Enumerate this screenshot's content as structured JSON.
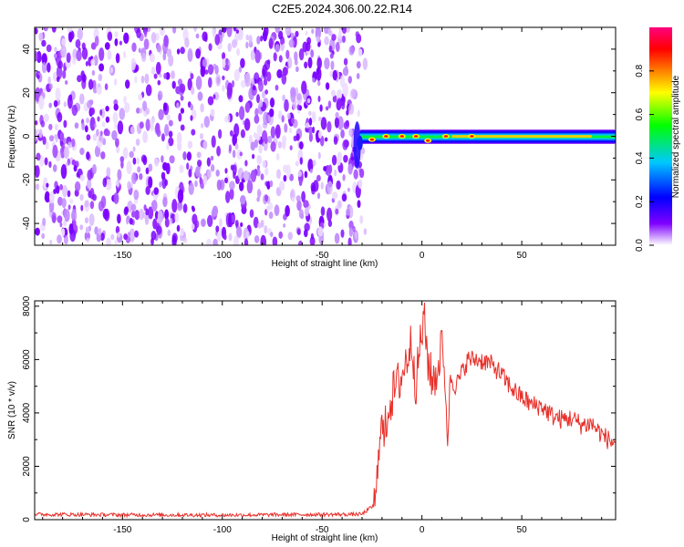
{
  "title": "C2E5.2024.306.00.22.R14",
  "chart_data": [
    {
      "type": "heatmap",
      "xlabel": "Height of straight line (km)",
      "ylabel": "Frequency (Hz)",
      "xlim": [
        -194,
        97
      ],
      "ylim": [
        -50,
        50
      ],
      "xticks": [
        -150,
        -100,
        -50,
        0,
        50
      ],
      "yticks": [
        -40,
        -20,
        0,
        20,
        40
      ],
      "colorbar": {
        "label": "Normalized spectral amplitude",
        "ticks": [
          "0.0",
          "0.2",
          "0.4",
          "0.6",
          "0.8"
        ],
        "range": [
          0,
          1
        ],
        "colormap": [
          "#ffffff",
          "#7f00ff",
          "#0000ff",
          "#00c8ff",
          "#00ff00",
          "#ffff00",
          "#ff8000",
          "#ff0000",
          "#ff0080"
        ]
      },
      "noise_region_x": [
        -194,
        -32
      ],
      "signal_band": {
        "x_range": [
          -32,
          97
        ],
        "center_freq": [
          [
            -32,
            -2
          ],
          [
            -30,
            -3
          ],
          [
            -28,
            -1
          ],
          [
            -20,
            0
          ],
          [
            -10,
            0
          ],
          [
            0,
            0
          ],
          [
            5,
            -2
          ],
          [
            10,
            -1
          ],
          [
            20,
            0
          ],
          [
            50,
            0
          ],
          [
            97,
            0
          ]
        ],
        "peak_x": [
          -25,
          -18,
          -10,
          -3,
          3,
          12,
          25
        ]
      },
      "grid": false
    },
    {
      "type": "line",
      "xlabel": "Height of straight line (km)",
      "ylabel": "SNR (10 * v/v)",
      "xlim": [
        -194,
        97
      ],
      "ylim": [
        0,
        8200
      ],
      "xticks": [
        -150,
        -100,
        -50,
        0,
        50
      ],
      "yticks": [
        0,
        2000,
        4000,
        6000,
        8000
      ],
      "color": "#e8302a",
      "series": [
        {
          "x": [
            -194,
            -150,
            -100,
            -60,
            -30,
            -23,
            -21,
            -19,
            -17,
            -14,
            -10,
            -7,
            -5,
            -3,
            -1,
            1,
            3,
            5,
            8,
            10,
            12,
            13,
            14,
            17,
            20,
            23,
            28,
            33,
            38,
            43,
            48,
            55,
            60,
            65,
            70,
            75,
            80,
            85,
            90,
            95,
            97
          ],
          "y": [
            200,
            180,
            170,
            190,
            200,
            600,
            3800,
            3000,
            4200,
            4800,
            5400,
            6200,
            6700,
            5000,
            6500,
            7500,
            6000,
            5200,
            5600,
            6800,
            4600,
            2500,
            5400,
            5000,
            5500,
            6000,
            6000,
            5900,
            5600,
            5100,
            4700,
            4300,
            4250,
            3900,
            3750,
            3800,
            3550,
            3600,
            3200,
            2900,
            2950
          ]
        }
      ],
      "grid": false
    }
  ]
}
